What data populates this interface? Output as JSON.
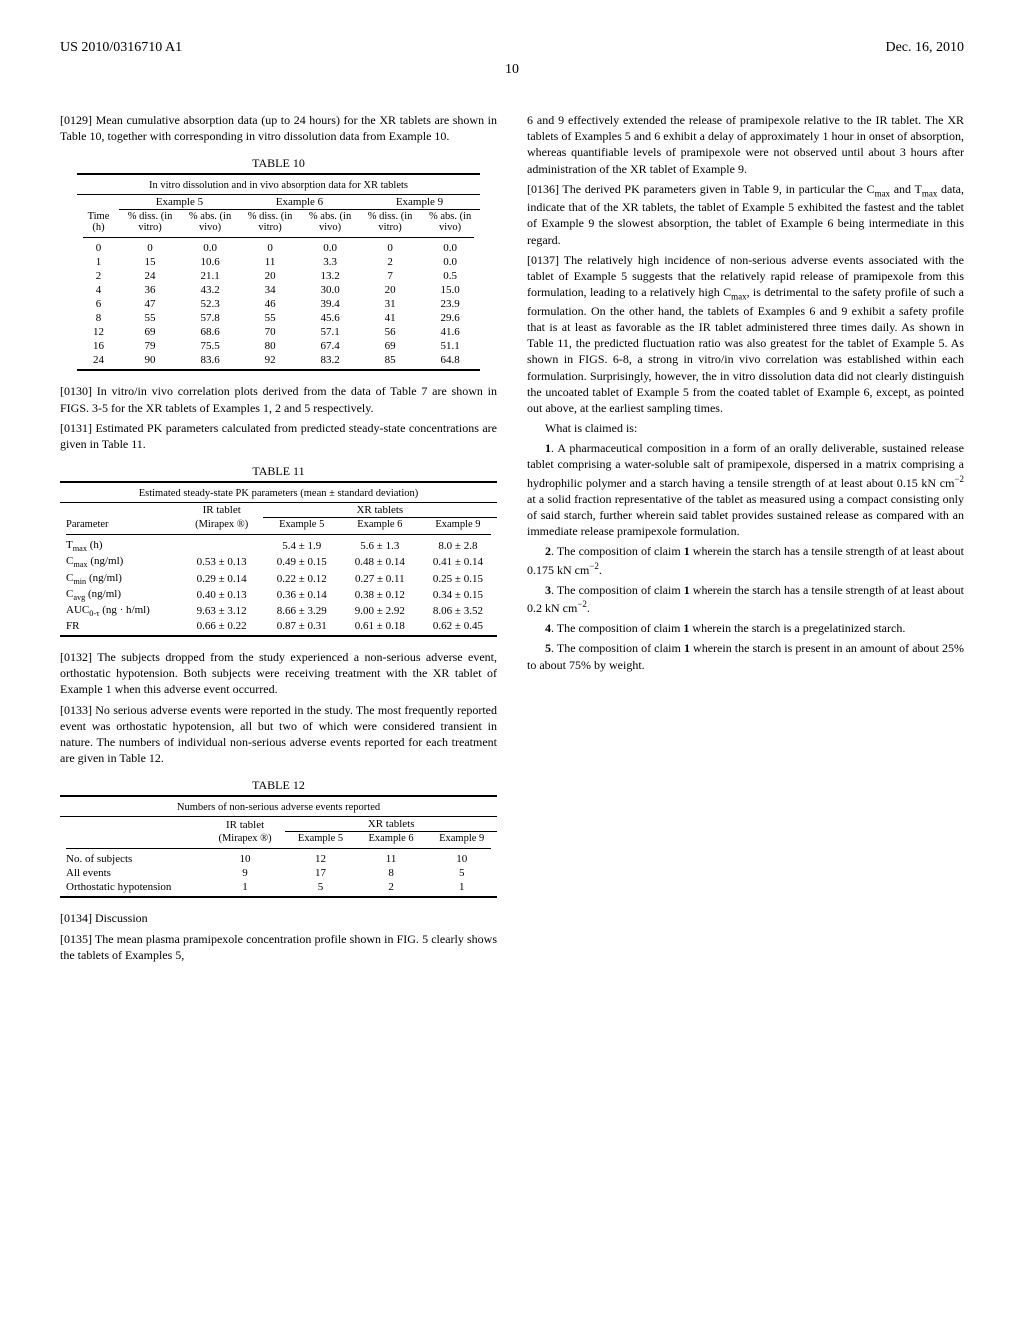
{
  "header": {
    "left": "US 2010/0316710 A1",
    "right": "Dec. 16, 2010"
  },
  "page_number": "10",
  "col1": {
    "p0129": "[0129]   Mean cumulative absorption data (up to 24 hours) for the XR tablets are shown in Table 10, together with corresponding in vitro dissolution data from Example 10.",
    "table10": {
      "label": "TABLE 10",
      "caption": "In vitro dissolution and in vivo absorption data for XR tablets",
      "group_headers": [
        "Example 5",
        "Example 6",
        "Example 9"
      ],
      "time_label": "Time (h)",
      "sub_headers": [
        "% diss. (in vitro)",
        "% abs. (in vivo)",
        "% diss. (in vitro)",
        "% abs. (in vivo)",
        "% diss. (in vitro)",
        "% abs. (in vivo)"
      ],
      "rows": [
        [
          "0",
          "0",
          "0.0",
          "0",
          "0.0",
          "0",
          "0.0"
        ],
        [
          "1",
          "15",
          "10.6",
          "11",
          "3.3",
          "2",
          "0.0"
        ],
        [
          "2",
          "24",
          "21.1",
          "20",
          "13.2",
          "7",
          "0.5"
        ],
        [
          "4",
          "36",
          "43.2",
          "34",
          "30.0",
          "20",
          "15.0"
        ],
        [
          "6",
          "47",
          "52.3",
          "46",
          "39.4",
          "31",
          "23.9"
        ],
        [
          "8",
          "55",
          "57.8",
          "55",
          "45.6",
          "41",
          "29.6"
        ],
        [
          "12",
          "69",
          "68.6",
          "70",
          "57.1",
          "56",
          "41.6"
        ],
        [
          "16",
          "79",
          "75.5",
          "80",
          "67.4",
          "69",
          "51.1"
        ],
        [
          "24",
          "90",
          "83.6",
          "92",
          "83.2",
          "85",
          "64.8"
        ]
      ]
    },
    "p0130": "[0130]   In vitro/in vivo correlation plots derived from the data of Table 7 are shown in FIGS. 3-5 for the XR tablets of Examples 1, 2 and 5 respectively.",
    "p0131": "[0131]   Estimated PK parameters calculated from predicted steady-state concentrations are given in Table 11.",
    "table11": {
      "label": "TABLE 11",
      "caption": "Estimated steady-state PK parameters (mean ± standard deviation)",
      "col1_header": "Parameter",
      "ir_header": "IR tablet",
      "xr_header": "XR tablets",
      "ir_sub": "(Mirapex ®)",
      "xr_subs": [
        "Example 5",
        "Example 6",
        "Example 9"
      ],
      "rows_html": [
        [
          "T<sub>max</sub> (h)",
          "",
          "5.4 ± 1.9",
          "5.6 ± 1.3",
          "8.0 ± 2.8"
        ],
        [
          "C<sub>max</sub> (ng/ml)",
          "0.53 ± 0.13",
          "0.49 ± 0.15",
          "0.48 ± 0.14",
          "0.41 ± 0.14"
        ],
        [
          "C<sub>min</sub> (ng/ml)",
          "0.29 ± 0.14",
          "0.22 ± 0.12",
          "0.27 ± 0.11",
          "0.25 ± 0.15"
        ],
        [
          "C<sub>avg</sub> (ng/ml)",
          "0.40 ± 0.13",
          "0.36 ± 0.14",
          "0.38 ± 0.12",
          "0.34 ± 0.15"
        ],
        [
          "AUC<sub>0-τ</sub> (ng · h/ml)",
          "9.63 ± 3.12",
          "8.66 ± 3.29",
          "9.00 ± 2.92",
          "8.06 ± 3.52"
        ],
        [
          "FR",
          "0.66 ± 0.22",
          "0.87 ± 0.31",
          "0.61 ± 0.18",
          "0.62 ± 0.45"
        ]
      ]
    },
    "p0132": "[0132]   The subjects dropped from the study experienced a non-serious adverse event, orthostatic hypotension. Both subjects were receiving treatment with the XR tablet of Example 1 when this adverse event occurred.",
    "p0133": "[0133]   No serious adverse events were reported in the study. The most frequently reported event was orthostatic hypotension, all but two of which were considered transient in nature. The numbers of individual non-serious adverse events reported for each treatment are given in Table 12.",
    "table12": {
      "label": "TABLE 12",
      "caption": "Numbers of non-serious adverse events reported",
      "ir_header": "IR tablet",
      "xr_header": "XR tablets",
      "ir_sub": "(Mirapex ®)",
      "xr_subs": [
        "Example 5",
        "Example 6",
        "Example 9"
      ],
      "rows": [
        [
          "No. of subjects",
          "10",
          "12",
          "11",
          "10"
        ],
        [
          "All events",
          "9",
          "17",
          "8",
          "5"
        ],
        [
          "Orthostatic hypotension",
          "1",
          "5",
          "2",
          "1"
        ]
      ]
    },
    "p0134_label": "[0134]   Discussion",
    "p0135": "[0135]   The mean plasma pramipexole concentration profile shown in FIG. 5 clearly shows the tablets of Examples 5,"
  },
  "col2": {
    "cont": "6 and 9 effectively extended the release of pramipexole relative to the IR tablet. The XR tablets of Examples 5 and 6 exhibit a delay of approximately 1 hour in onset of absorption, whereas quantifiable levels of pramipexole were not observed until about 3 hours after administration of the XR tablet of Example 9.",
    "p0136_html": "[0136]   The derived PK parameters given in Table 9, in particular the C<sub>max</sub> and T<sub>max</sub> data, indicate that of the XR tablets, the tablet of Example 5 exhibited the fastest and the tablet of Example 9 the slowest absorption, the tablet of Example 6 being intermediate in this regard.",
    "p0137_html": "[0137]   The relatively high incidence of non-serious adverse events associated with the tablet of Example 5 suggests that the relatively rapid release of pramipexole from this formulation, leading to a relatively high C<sub>max</sub>, is detrimental to the safety profile of such a formulation. On the other hand, the tablets of Examples 6 and 9 exhibit a safety profile that is at least as favorable as the IR tablet administered three times daily. As shown in Table 11, the predicted fluctuation ratio was also greatest for the tablet of Example 5. As shown in FIGS. 6-8, a strong in vitro/in vivo correlation was established within each formulation. Surprisingly, however, the in vitro dissolution data did not clearly distinguish the uncoated tablet of Example 5 from the coated tablet of Example 6, except, as pointed out above, at the earliest sampling times.",
    "claims_intro": "What is claimed is:",
    "claim1_html": "<span class=\"claim-num\">1</span>. A pharmaceutical composition in a form of an orally deliverable, sustained release tablet comprising a water-soluble salt of pramipexole, dispersed in a matrix comprising a hydrophilic polymer and a starch having a tensile strength of at least about 0.15 kN cm<sup>−2</sup> at a solid fraction representative of the tablet as measured using a compact consisting only of said starch, further wherein said tablet provides sustained release as compared with an immediate release pramipexole formulation.",
    "claim2_html": "<span class=\"claim-num\">2</span>. The composition of claim <span class=\"claim-num\">1</span> wherein the starch has a tensile strength of at least about 0.175 kN cm<sup>−2</sup>.",
    "claim3_html": "<span class=\"claim-num\">3</span>. The composition of claim <span class=\"claim-num\">1</span> wherein the starch has a tensile strength of at least about 0.2 kN cm<sup>−2</sup>.",
    "claim4_html": "<span class=\"claim-num\">4</span>. The composition of claim <span class=\"claim-num\">1</span> wherein the starch is a pregelatinized starch.",
    "claim5_html": "<span class=\"claim-num\">5</span>. The composition of claim <span class=\"claim-num\">1</span> wherein the starch is present in an amount of about 25% to about 75% by weight."
  }
}
